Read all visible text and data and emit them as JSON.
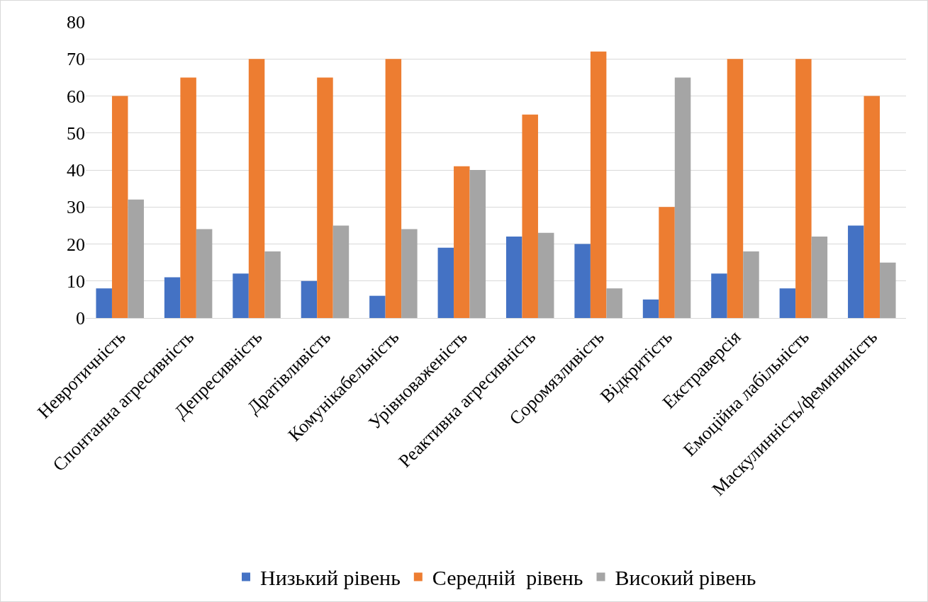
{
  "chart_data": {
    "type": "bar",
    "categories": [
      "Невротичність",
      "Спонтанна агресивність",
      "Депресивність",
      "Дратівливість",
      "Комунікабельність",
      "Урівноваженість",
      "Реактивна агресивність",
      "Соромязливість",
      "Відкритість",
      "Екстраверсія",
      "Емоційна лабільність",
      "Маскулинність/фемининість"
    ],
    "series": [
      {
        "name": "Низький рівень",
        "color": "#4472c4",
        "values": [
          8,
          11,
          12,
          10,
          6,
          19,
          22,
          20,
          5,
          12,
          8,
          25
        ]
      },
      {
        "name": "Середній  рівень",
        "color": "#ed7d31",
        "values": [
          60,
          65,
          70,
          65,
          70,
          41,
          55,
          72,
          30,
          70,
          70,
          60
        ]
      },
      {
        "name": "Високий рівень",
        "color": "#a5a5a5",
        "values": [
          32,
          24,
          18,
          25,
          24,
          40,
          23,
          8,
          65,
          18,
          22,
          15
        ]
      }
    ],
    "ylim": [
      0,
      80
    ],
    "yticks": [
      0,
      10,
      20,
      30,
      40,
      50,
      60,
      70,
      80
    ],
    "grid": "y",
    "legend": "bottom"
  }
}
